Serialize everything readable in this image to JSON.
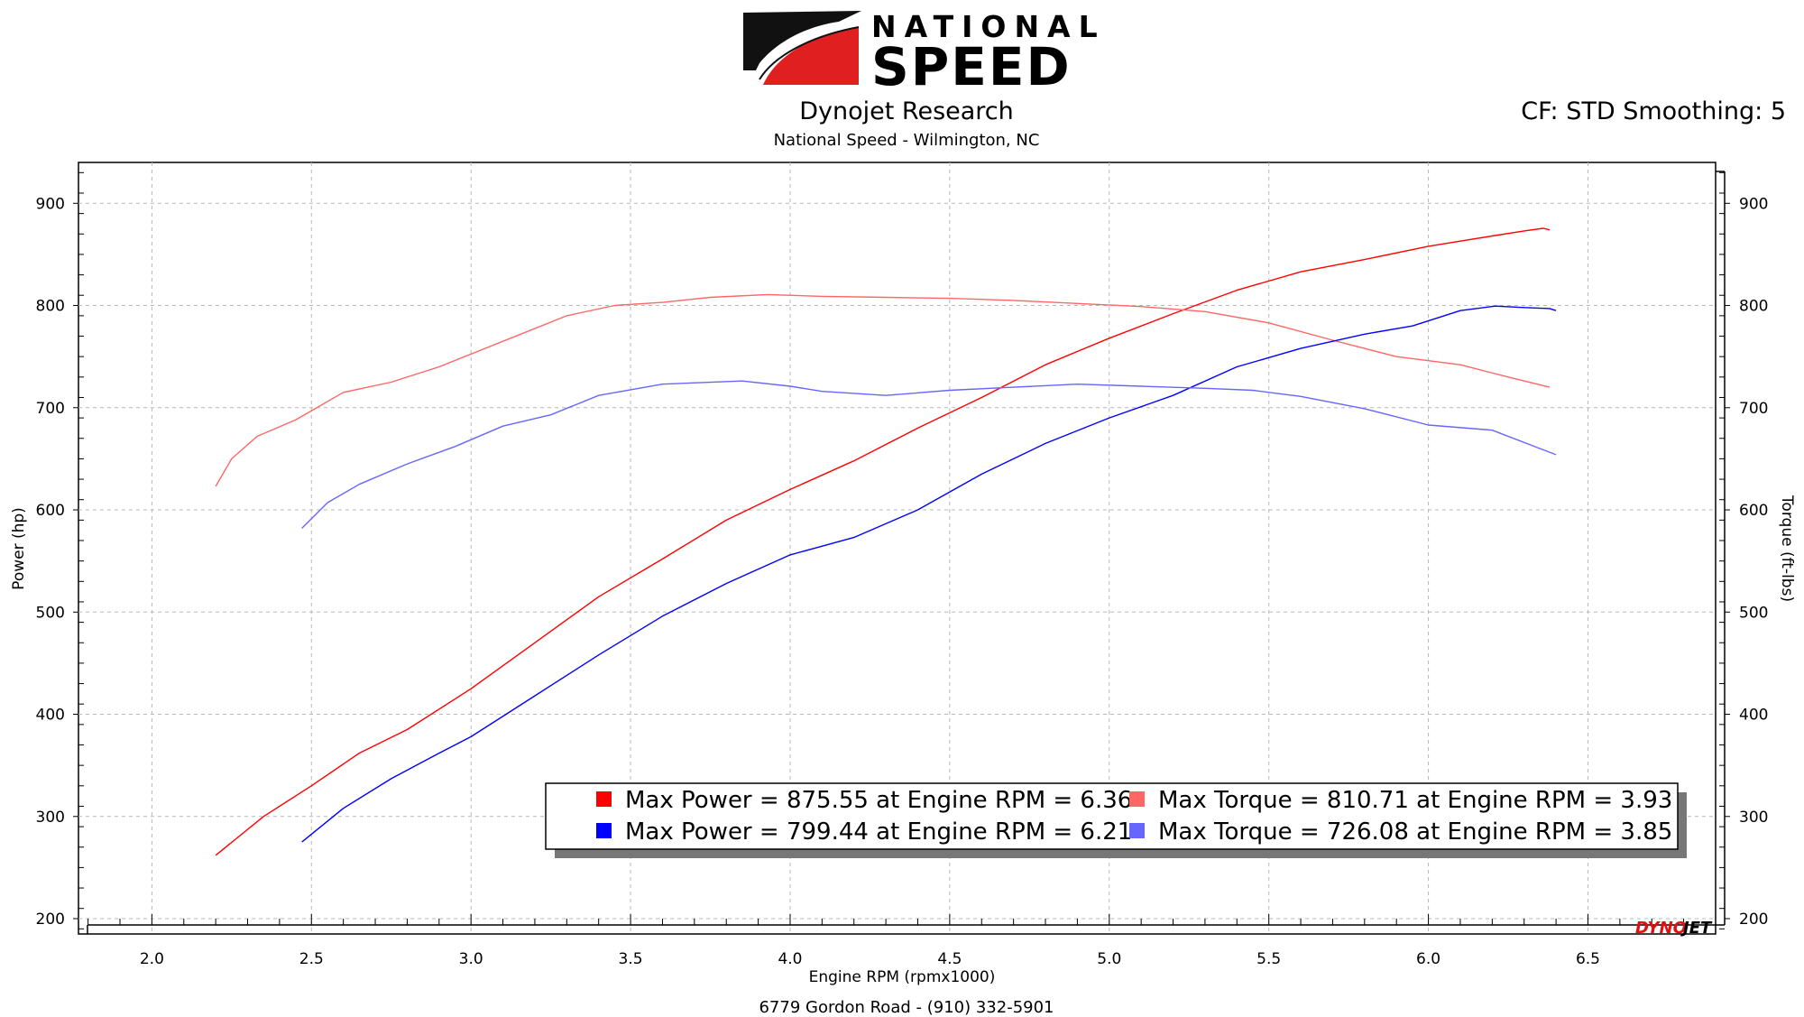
{
  "header": {
    "logo_line1": "NATIONAL",
    "logo_line2": "SPEED",
    "title": "Dynojet Research",
    "subtitle": "National Speed - Wilmington, NC",
    "settings": "CF: STD Smoothing: 5"
  },
  "footer": {
    "address": "6779 Gordon Road - (910) 332-5901"
  },
  "brand": {
    "dyno": "DYNO",
    "jet": "JET"
  },
  "colors": {
    "run1_power": "#ff0000",
    "run1_torque": "#ff6666",
    "run2_power": "#0000ff",
    "run2_torque": "#6666ff",
    "grid": "#b8b8b8",
    "plot_bg": "#ffffff"
  },
  "chart_data": {
    "type": "line",
    "xlabel": "Engine RPM (rpmx1000)",
    "ylabel": "Power (hp)",
    "ylabel_right": "Torque (ft-lbs)",
    "xlim": [
      1.77,
      6.9
    ],
    "ylim": [
      185,
      940
    ],
    "xticks": [
      "2.0",
      "2.5",
      "3.0",
      "3.5",
      "4.0",
      "4.5",
      "5.0",
      "5.5",
      "6.0",
      "6.5"
    ],
    "yticks": [
      "200",
      "300",
      "400",
      "500",
      "600",
      "700",
      "800",
      "900"
    ],
    "grid": true,
    "legend_position": "bottom-right",
    "legend": [
      "Max Power = 875.55 at Engine RPM = 6.36",
      "Max Torque = 810.71 at Engine RPM = 3.93",
      "Max Power = 799.44 at Engine RPM = 6.21",
      "Max Torque = 726.08 at Engine RPM = 3.85"
    ],
    "series": [
      {
        "id": "run1_power",
        "color": "#ff0000",
        "axis": "left",
        "x": [
          2.2,
          2.35,
          2.5,
          2.65,
          2.8,
          3.0,
          3.2,
          3.4,
          3.6,
          3.8,
          4.0,
          4.2,
          4.4,
          4.6,
          4.8,
          5.0,
          5.2,
          5.4,
          5.6,
          5.8,
          6.0,
          6.1,
          6.2,
          6.3,
          6.36,
          6.38
        ],
        "y": [
          262,
          300,
          330,
          362,
          385,
          425,
          470,
          515,
          552,
          590,
          620,
          648,
          680,
          710,
          742,
          768,
          792,
          815,
          833,
          845,
          858,
          863,
          868,
          873,
          875.5,
          874
        ]
      },
      {
        "id": "run1_torque",
        "color": "#ff6666",
        "axis": "right",
        "x": [
          2.2,
          2.25,
          2.33,
          2.45,
          2.6,
          2.75,
          2.9,
          3.1,
          3.3,
          3.45,
          3.6,
          3.75,
          3.93,
          4.1,
          4.3,
          4.5,
          4.7,
          4.9,
          5.1,
          5.3,
          5.5,
          5.7,
          5.9,
          6.1,
          6.25,
          6.38
        ],
        "y": [
          623,
          650,
          672,
          688,
          715,
          725,
          740,
          765,
          790,
          800,
          803,
          808,
          810.7,
          809,
          808,
          807,
          805,
          802,
          799,
          794,
          783,
          766,
          750,
          742,
          730,
          720
        ]
      },
      {
        "id": "run2_power",
        "color": "#0000ff",
        "axis": "left",
        "x": [
          2.47,
          2.6,
          2.75,
          2.9,
          3.0,
          3.2,
          3.4,
          3.6,
          3.8,
          4.0,
          4.2,
          4.4,
          4.6,
          4.8,
          5.0,
          5.2,
          5.4,
          5.6,
          5.8,
          5.95,
          6.1,
          6.21,
          6.3,
          6.38,
          6.4
        ],
        "y": [
          275,
          308,
          337,
          362,
          378,
          418,
          458,
          496,
          528,
          556,
          573,
          600,
          635,
          665,
          690,
          712,
          740,
          758,
          772,
          780,
          795,
          799.4,
          798,
          797,
          795
        ]
      },
      {
        "id": "run2_torque",
        "color": "#6666ff",
        "axis": "right",
        "x": [
          2.47,
          2.55,
          2.65,
          2.8,
          2.95,
          3.1,
          3.25,
          3.4,
          3.6,
          3.85,
          4.0,
          4.1,
          4.3,
          4.5,
          4.7,
          4.9,
          5.1,
          5.3,
          5.45,
          5.6,
          5.8,
          6.0,
          6.2,
          6.35,
          6.4
        ],
        "y": [
          582,
          607,
          625,
          645,
          662,
          682,
          693,
          712,
          723,
          726.1,
          721,
          716,
          712,
          717,
          720,
          723,
          721,
          719,
          717,
          711,
          699,
          683,
          678,
          660,
          654
        ]
      }
    ]
  }
}
